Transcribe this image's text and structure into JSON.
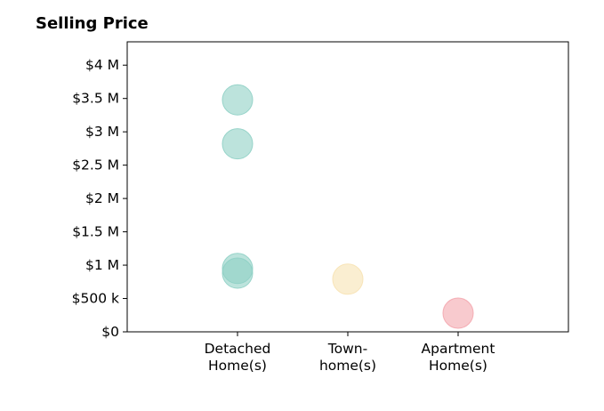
{
  "chart_data": {
    "type": "scatter",
    "title": "Selling Price",
    "categories": [
      [
        "Detached",
        "Home(s)"
      ],
      [
        "Town-",
        "home(s)"
      ],
      [
        "Apartment",
        "Home(s)"
      ]
    ],
    "y_ticks": [
      {
        "value": 0,
        "label": "$0"
      },
      {
        "value": 500000,
        "label": "$500 k"
      },
      {
        "value": 1000000,
        "label": "$1 M"
      },
      {
        "value": 1500000,
        "label": "$1.5 M"
      },
      {
        "value": 2000000,
        "label": "$2 M"
      },
      {
        "value": 2500000,
        "label": "$2.5 M"
      },
      {
        "value": 3000000,
        "label": "$3 M"
      },
      {
        "value": 3500000,
        "label": "$3.5 M"
      },
      {
        "value": 4000000,
        "label": "$4 M"
      }
    ],
    "ylim": [
      0,
      4350000
    ],
    "points": [
      {
        "category": 0,
        "value": 3480000,
        "color": "#8fd0c5"
      },
      {
        "category": 0,
        "value": 2820000,
        "color": "#8fd0c5"
      },
      {
        "category": 0,
        "value": 950000,
        "color": "#8fd0c5"
      },
      {
        "category": 0,
        "value": 880000,
        "color": "#8fd0c5"
      },
      {
        "category": 1,
        "value": 790000,
        "color": "#f7e2b3"
      },
      {
        "category": 2,
        "value": 280000,
        "color": "#f4a6ae"
      }
    ],
    "point_opacity": 0.6,
    "grid": false
  }
}
